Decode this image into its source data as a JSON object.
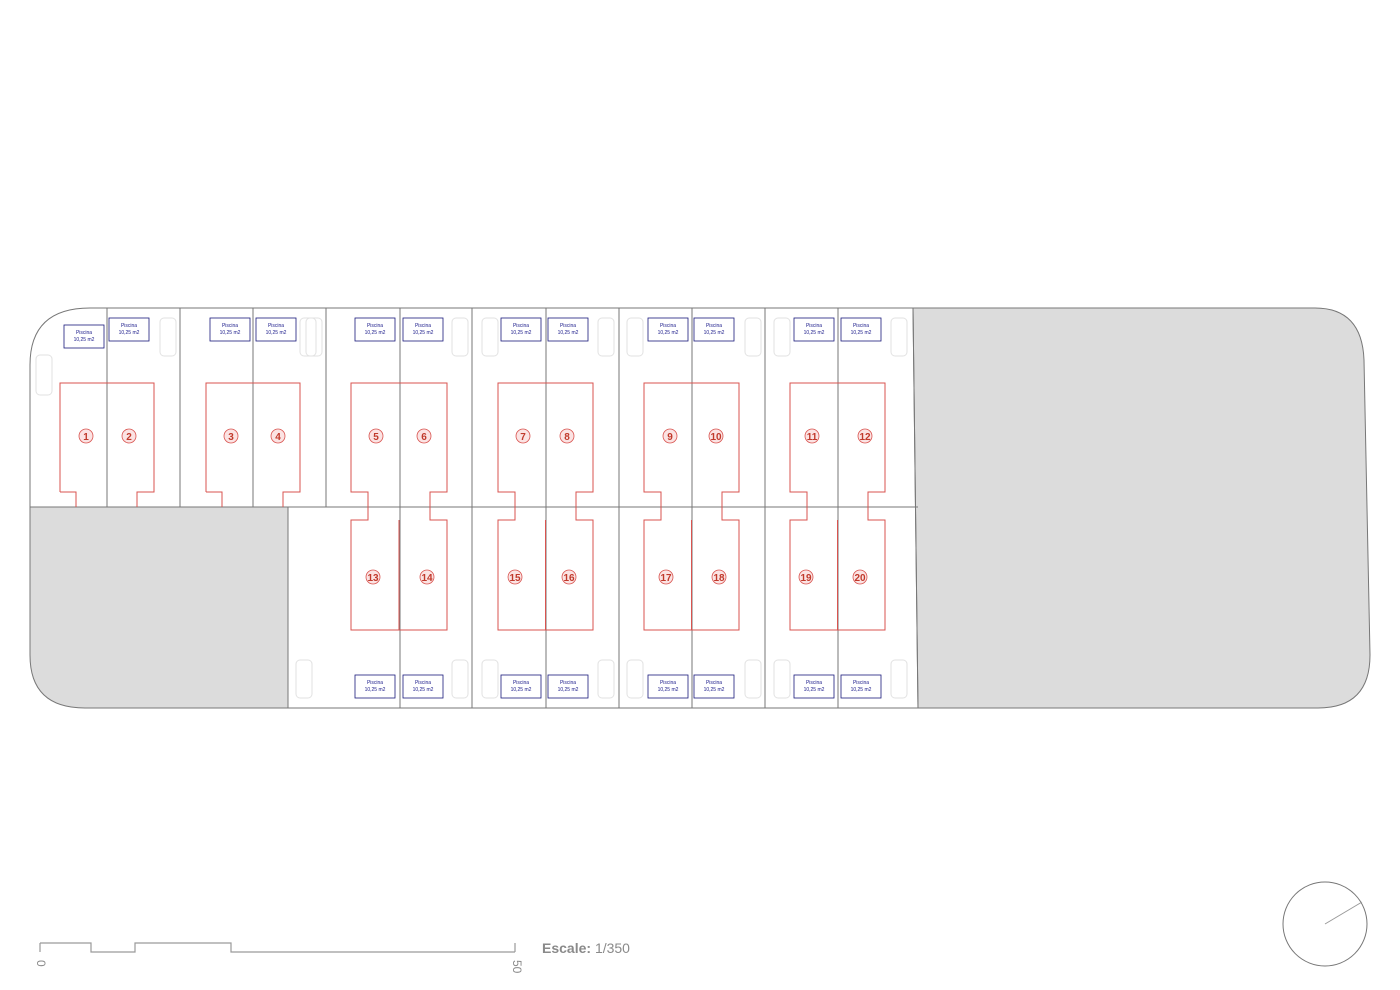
{
  "plan": {
    "colors": {
      "plot_line": "#777777",
      "house_line": "#d9534f",
      "pool_line": "#1a1a7a",
      "pool_text": "#1a1a8a",
      "gray_area": "#dcdcdc"
    },
    "houses_top": [
      "1",
      "2",
      "3",
      "4",
      "5",
      "6",
      "7",
      "8",
      "9",
      "10",
      "11",
      "12"
    ],
    "houses_bottom": [
      "13",
      "14",
      "15",
      "16",
      "17",
      "18",
      "19",
      "20"
    ],
    "pool_label": "Piscina",
    "pool_area": "10,25 m2",
    "pool_count_top": 12,
    "pool_count_bottom": 8
  },
  "scale_bar": {
    "label_bold": "Escale:",
    "label_value": "1/350",
    "tick_start": "0",
    "tick_end": "50"
  },
  "north_arrow": {
    "icon": "compass-icon"
  }
}
